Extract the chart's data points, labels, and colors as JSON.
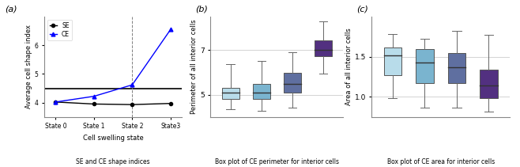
{
  "panel_a": {
    "se_values": [
      4.02,
      3.95,
      3.93,
      3.97
    ],
    "ce_values": [
      4.02,
      4.22,
      4.62,
      6.55
    ],
    "x": [
      0,
      1,
      2,
      3
    ],
    "xtick_labels": [
      "State 0",
      "State 1",
      "State 2",
      "State3"
    ],
    "ylabel": "Average cell shape index",
    "xlabel": "Cell swelling state",
    "title_sub": "SE and CE shape indices",
    "panel_label": "(a)",
    "hline_y": 4.5,
    "vline_x": 2,
    "ylim": [
      3.5,
      7.0
    ],
    "yticks": [
      4.0,
      5.0,
      6.0
    ],
    "se_color": "black",
    "ce_color": "blue"
  },
  "panel_b": {
    "panel_label": "(b)",
    "ylabel": "Perimeter of all interior cells",
    "title_sub": "Box plot of CE perimeter for interior cells",
    "ylim": [
      4.0,
      8.5
    ],
    "yticks": [
      5.0,
      7.0
    ],
    "boxes": [
      {
        "whislo": 4.35,
        "q1": 4.82,
        "med": 5.08,
        "q3": 5.32,
        "whishi": 6.38,
        "color": "#b8dcea"
      },
      {
        "whislo": 4.28,
        "q1": 4.82,
        "med": 5.08,
        "q3": 5.48,
        "whishi": 6.52,
        "color": "#7ab4cf"
      },
      {
        "whislo": 4.42,
        "q1": 5.08,
        "med": 5.48,
        "q3": 5.98,
        "whishi": 6.92,
        "color": "#5f6fa0"
      },
      {
        "whislo": 5.95,
        "q1": 6.72,
        "med": 7.02,
        "q3": 7.42,
        "whishi": 8.28,
        "color": "#523080"
      }
    ]
  },
  "panel_c": {
    "panel_label": "(c)",
    "ylabel": "Area of all interior cells",
    "title_sub": "Box plot of CE area for interior cells",
    "ylim": [
      0.75,
      2.0
    ],
    "yticks": [
      1.0,
      1.5
    ],
    "boxes": [
      {
        "whislo": 0.98,
        "q1": 1.27,
        "med": 1.52,
        "q3": 1.62,
        "whishi": 1.78,
        "color": "#b8dcea"
      },
      {
        "whislo": 0.87,
        "q1": 1.17,
        "med": 1.43,
        "q3": 1.6,
        "whishi": 1.72,
        "color": "#7ab4cf"
      },
      {
        "whislo": 0.87,
        "q1": 1.17,
        "med": 1.37,
        "q3": 1.55,
        "whishi": 1.82,
        "color": "#5f6fa0"
      },
      {
        "whislo": 0.82,
        "q1": 0.98,
        "med": 1.14,
        "q3": 1.34,
        "whishi": 1.77,
        "color": "#523080"
      }
    ]
  },
  "bg_color": "#ffffff",
  "grid_color": "#cccccc"
}
